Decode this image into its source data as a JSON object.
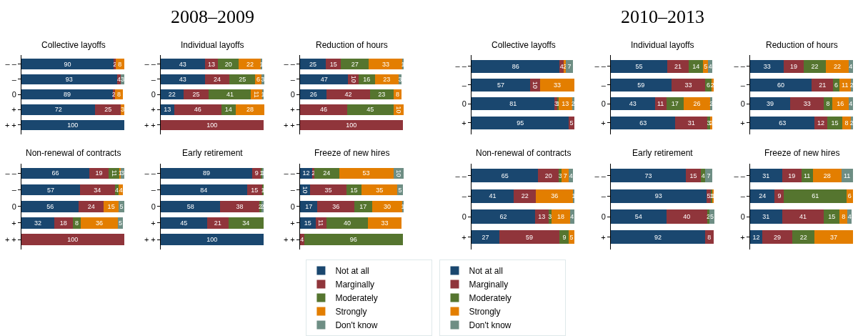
{
  "chart_data": [
    {
      "type": "bar",
      "title": "Collective layoffs",
      "annotations": [
        "2008–2009"
      ],
      "orientation": "horizontal",
      "stacked": true,
      "data_labels": true,
      "tick_labels": "y",
      "xlim": [
        0,
        101
      ],
      "legend": "bottom",
      "categories": [
        "– –",
        "–",
        "0",
        "+",
        "+ +"
      ],
      "series": [
        {
          "name": "Not at all",
          "color": "#1a476f",
          "values": [
            90,
            93,
            89,
            72,
            100
          ]
        },
        {
          "name": "Marginally",
          "color": "#90353b",
          "values": [
            2,
            4,
            2,
            25,
            null
          ]
        },
        {
          "name": "Moderately",
          "color": "#55752f",
          "values": [
            null,
            null,
            null,
            null,
            null
          ]
        },
        {
          "name": "Strongly",
          "color": "#e37e00",
          "values": [
            8,
            null,
            8,
            3,
            null
          ]
        },
        {
          "name": "Don't know",
          "color": "#6e8e84",
          "values": [
            null,
            3,
            null,
            null,
            null
          ]
        }
      ]
    },
    {
      "type": "bar",
      "title": "Individual layoffs",
      "orientation": "horizontal",
      "stacked": true,
      "data_labels": true,
      "tick_labels": "y",
      "xlim": [
        0,
        101
      ],
      "categories": [
        "– –",
        "–",
        "0",
        "+",
        "+ +"
      ],
      "series": [
        {
          "color": "#1a476f",
          "values": [
            43,
            43,
            22,
            13,
            null
          ]
        },
        {
          "color": "#90353b",
          "values": [
            13,
            24,
            25,
            46,
            100
          ]
        },
        {
          "color": "#55752f",
          "values": [
            20,
            25,
            41,
            14,
            null
          ]
        },
        {
          "color": "#e37e00",
          "values": [
            22,
            6,
            11,
            28,
            null
          ]
        },
        {
          "color": "#6e8e84",
          "values": [
            1,
            3,
            1,
            null,
            null
          ]
        }
      ]
    },
    {
      "type": "bar",
      "title": "Reduction of hours",
      "orientation": "horizontal",
      "stacked": true,
      "data_labels": true,
      "tick_labels": "y",
      "xlim": [
        0,
        101
      ],
      "categories": [
        "– –",
        "–",
        "0",
        "+",
        "+ +"
      ],
      "series": [
        {
          "color": "#1a476f",
          "values": [
            25,
            47,
            26,
            null,
            null
          ]
        },
        {
          "color": "#90353b",
          "values": [
            15,
            10,
            42,
            46,
            100
          ]
        },
        {
          "color": "#55752f",
          "values": [
            27,
            16,
            23,
            45,
            null
          ]
        },
        {
          "color": "#e37e00",
          "values": [
            33,
            23,
            8,
            10,
            null
          ]
        },
        {
          "color": "#6e8e84",
          "values": [
            1,
            3,
            null,
            null,
            null
          ]
        }
      ]
    },
    {
      "type": "bar",
      "title": "Non-renewal of contracts",
      "orientation": "horizontal",
      "stacked": true,
      "data_labels": true,
      "tick_labels": "y",
      "xlim": [
        0,
        101
      ],
      "categories": [
        "– –",
        "–",
        "0",
        "+",
        "+ +"
      ],
      "series": [
        {
          "color": "#1a476f",
          "values": [
            66,
            57,
            56,
            32,
            null
          ]
        },
        {
          "color": "#90353b",
          "values": [
            19,
            34,
            24,
            18,
            100
          ]
        },
        {
          "color": "#55752f",
          "values": [
            11,
            4,
            null,
            8,
            null
          ]
        },
        {
          "color": "#e37e00",
          "values": [
            1,
            4,
            15,
            36,
            null
          ]
        },
        {
          "color": "#6e8e84",
          "values": [
            3,
            null,
            5,
            5,
            null
          ]
        }
      ]
    },
    {
      "type": "bar",
      "title": "Early retirement",
      "orientation": "horizontal",
      "stacked": true,
      "data_labels": true,
      "tick_labels": "y",
      "xlim": [
        0,
        101
      ],
      "categories": [
        "– –",
        "–",
        "0",
        "+",
        "+ +"
      ],
      "series": [
        {
          "color": "#1a476f",
          "values": [
            89,
            84,
            58,
            45,
            100
          ]
        },
        {
          "color": "#90353b",
          "values": [
            9,
            15,
            38,
            21,
            null
          ]
        },
        {
          "color": "#55752f",
          "values": [
            1,
            1,
            2,
            34,
            null
          ]
        },
        {
          "color": "#e37e00",
          "values": [
            null,
            null,
            null,
            null,
            null
          ]
        },
        {
          "color": "#6e8e84",
          "values": [
            1,
            null,
            2,
            null,
            null
          ]
        }
      ]
    },
    {
      "type": "bar",
      "title": "Freeze of new hires",
      "orientation": "horizontal",
      "stacked": true,
      "data_labels": true,
      "tick_labels": "y",
      "xlim": [
        0,
        101
      ],
      "categories": [
        "– –",
        "–",
        "0",
        "+",
        "+ +"
      ],
      "series": [
        {
          "color": "#1a476f",
          "values": [
            12,
            10,
            17,
            15,
            null
          ]
        },
        {
          "color": "#90353b",
          "values": [
            2,
            35,
            36,
            11,
            4
          ]
        },
        {
          "color": "#55752f",
          "values": [
            24,
            15,
            17,
            40,
            96
          ]
        },
        {
          "color": "#e37e00",
          "values": [
            53,
            35,
            30,
            33,
            null
          ]
        },
        {
          "color": "#6e8e84",
          "values": [
            10,
            5,
            1,
            null,
            null
          ]
        }
      ]
    },
    {
      "type": "bar",
      "title": "Collective layoffs",
      "annotations": [
        "2010–2013"
      ],
      "orientation": "horizontal",
      "stacked": true,
      "data_labels": true,
      "tick_labels": "y",
      "xlim": [
        0,
        101
      ],
      "legend": "bottom",
      "categories": [
        "– –",
        "–",
        "0",
        "+"
      ],
      "series": [
        {
          "name": "Not at all",
          "color": "#1a476f",
          "values": [
            86,
            57,
            81,
            95
          ]
        },
        {
          "name": "Marginally",
          "color": "#90353b",
          "values": [
            4,
            10,
            3,
            5
          ]
        },
        {
          "name": "Moderately",
          "color": "#55752f",
          "values": [
            null,
            null,
            1,
            null
          ]
        },
        {
          "name": "Strongly",
          "color": "#e37e00",
          "values": [
            2,
            33,
            13,
            null
          ]
        },
        {
          "name": "Don't know",
          "color": "#6e8e84",
          "values": [
            7,
            null,
            2,
            null
          ]
        }
      ]
    },
    {
      "type": "bar",
      "title": "Individual layoffs",
      "orientation": "horizontal",
      "stacked": true,
      "data_labels": true,
      "tick_labels": "y",
      "xlim": [
        0,
        101
      ],
      "categories": [
        "– –",
        "–",
        "0",
        "+"
      ],
      "series": [
        {
          "color": "#1a476f",
          "values": [
            55,
            59,
            43,
            63
          ]
        },
        {
          "color": "#90353b",
          "values": [
            21,
            33,
            11,
            31
          ]
        },
        {
          "color": "#55752f",
          "values": [
            14,
            6,
            17,
            3
          ]
        },
        {
          "color": "#e37e00",
          "values": [
            5,
            2,
            26,
            2
          ]
        },
        {
          "color": "#6e8e84",
          "values": [
            4,
            null,
            2,
            null
          ]
        }
      ]
    },
    {
      "type": "bar",
      "title": "Reduction of hours",
      "orientation": "horizontal",
      "stacked": true,
      "data_labels": true,
      "tick_labels": "y",
      "xlim": [
        0,
        101
      ],
      "categories": [
        "– –",
        "–",
        "0",
        "+"
      ],
      "series": [
        {
          "color": "#1a476f",
          "values": [
            33,
            60,
            39,
            63
          ]
        },
        {
          "color": "#90353b",
          "values": [
            19,
            21,
            33,
            12
          ]
        },
        {
          "color": "#55752f",
          "values": [
            22,
            6,
            8,
            15
          ]
        },
        {
          "color": "#e37e00",
          "values": [
            22,
            11,
            16,
            8
          ]
        },
        {
          "color": "#6e8e84",
          "values": [
            4,
            2,
            4,
            2
          ]
        }
      ]
    },
    {
      "type": "bar",
      "title": "Non-renewal of contracts",
      "orientation": "horizontal",
      "stacked": true,
      "data_labels": true,
      "tick_labels": "y",
      "xlim": [
        0,
        101
      ],
      "categories": [
        "– –",
        "–",
        "0",
        "+"
      ],
      "series": [
        {
          "color": "#1a476f",
          "values": [
            65,
            41,
            62,
            27
          ]
        },
        {
          "color": "#90353b",
          "values": [
            20,
            22,
            13,
            59
          ]
        },
        {
          "color": "#55752f",
          "values": [
            3,
            null,
            3,
            9
          ]
        },
        {
          "color": "#e37e00",
          "values": [
            7,
            36,
            18,
            5
          ]
        },
        {
          "color": "#6e8e84",
          "values": [
            4,
            1,
            4,
            null
          ]
        }
      ]
    },
    {
      "type": "bar",
      "title": "Early retirement",
      "orientation": "horizontal",
      "stacked": true,
      "data_labels": true,
      "tick_labels": "y",
      "xlim": [
        0,
        101
      ],
      "categories": [
        "– –",
        "–",
        "0",
        "+"
      ],
      "series": [
        {
          "color": "#1a476f",
          "values": [
            73,
            93,
            54,
            92
          ]
        },
        {
          "color": "#90353b",
          "values": [
            15,
            5,
            40,
            8
          ]
        },
        {
          "color": "#55752f",
          "values": [
            4,
            1,
            2,
            null
          ]
        },
        {
          "color": "#e37e00",
          "values": [
            null,
            1,
            null,
            null
          ]
        },
        {
          "color": "#6e8e84",
          "values": [
            7,
            null,
            5,
            null
          ]
        }
      ]
    },
    {
      "type": "bar",
      "title": "Freeze of new hires",
      "orientation": "horizontal",
      "stacked": true,
      "data_labels": true,
      "tick_labels": "y",
      "xlim": [
        0,
        101
      ],
      "categories": [
        "– –",
        "–",
        "0",
        "+"
      ],
      "series": [
        {
          "color": "#1a476f",
          "values": [
            31,
            24,
            31,
            12
          ]
        },
        {
          "color": "#90353b",
          "values": [
            19,
            9,
            41,
            29
          ]
        },
        {
          "color": "#55752f",
          "values": [
            11,
            61,
            15,
            22
          ]
        },
        {
          "color": "#e37e00",
          "values": [
            28,
            6,
            8,
            37
          ]
        },
        {
          "color": "#6e8e84",
          "values": [
            11,
            null,
            4,
            null
          ]
        }
      ]
    }
  ]
}
